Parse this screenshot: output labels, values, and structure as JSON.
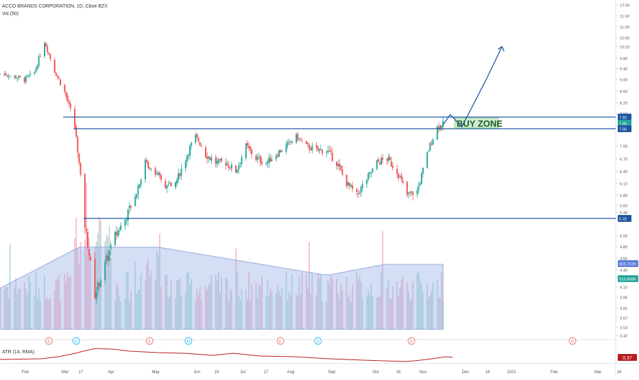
{
  "header": {
    "symbol": "ACCO BRANDS CORPORATION, 1D, Cboe BZX",
    "volume_indicator": "Vol (50)"
  },
  "atr_panel": {
    "label": "ATR (14, RMA)",
    "value_tag": "0.37"
  },
  "colors": {
    "up": "#26a69a",
    "down": "#ef5350",
    "up_vol": "#b2dfdb",
    "down_vol": "#f8bbd0",
    "vol_ma": "#9fb6e6",
    "level_line": "#1e56a0",
    "buy_zone_fill": "#c8e6c9",
    "buy_zone_text": "#1b5e20",
    "atr_line": "#b71c1c",
    "axis_text": "#555555"
  },
  "chart_data": {
    "type": "candlestick",
    "title": "ACCO BRANDS CORPORATION, 1D, Cboe BZX",
    "y_axis": {
      "ticks": [
        "12.00",
        "11.60",
        "11.00",
        "10.60",
        "10.20",
        "9.80",
        "9.40",
        "9.00",
        "8.60",
        "8.20",
        "7.80",
        "7.40",
        "7.00",
        "6.70",
        "6.40",
        "6.10",
        "5.80",
        "5.60",
        "5.40",
        "5.20",
        "5.00",
        "4.80",
        "4.60",
        "4.40",
        "4.30",
        "4.10",
        "3.95",
        "3.81",
        "3.67",
        "3.54",
        "3.42"
      ],
      "ylim": [
        3.4,
        12.05
      ]
    },
    "x_axis": {
      "ticks": [
        "Feb",
        "Mar",
        "17",
        "Apr",
        "May",
        "Jun",
        "15",
        "Jul",
        "17",
        "Aug",
        "Sep",
        "Oct",
        "16",
        "Nov",
        "Dec",
        "16",
        "2021",
        "Feb",
        "Mar",
        "16"
      ]
    },
    "price_tags": [
      "7.82",
      "7.65",
      "7.56",
      "5.32",
      "655.737K",
      "510.868K"
    ],
    "levels": [
      7.82,
      7.56,
      5.32
    ],
    "buy_zone": {
      "label": "BUY ZONE",
      "top": 7.82,
      "bottom": 7.56
    },
    "price_path": [
      [
        "2020-01-20",
        9.2
      ],
      [
        "2020-01-27",
        9.1
      ],
      [
        "2020-02-03",
        9.0
      ],
      [
        "2020-02-10",
        9.25
      ],
      [
        "2020-02-17",
        10.4
      ],
      [
        "2020-02-24",
        9.3
      ],
      [
        "2020-03-02",
        8.6
      ],
      [
        "2020-03-09",
        7.6
      ],
      [
        "2020-03-16",
        5.2
      ],
      [
        "2020-03-23",
        4.0
      ],
      [
        "2020-03-30",
        4.5
      ],
      [
        "2020-04-06",
        5.0
      ],
      [
        "2020-04-13",
        5.3
      ],
      [
        "2020-04-20",
        5.8
      ],
      [
        "2020-04-27",
        6.6
      ],
      [
        "2020-05-04",
        6.4
      ],
      [
        "2020-05-11",
        6.0
      ],
      [
        "2020-05-18",
        6.1
      ],
      [
        "2020-05-25",
        6.7
      ],
      [
        "2020-06-01",
        7.3
      ],
      [
        "2020-06-08",
        6.8
      ],
      [
        "2020-06-15",
        6.6
      ],
      [
        "2020-06-22",
        6.6
      ],
      [
        "2020-06-29",
        6.4
      ],
      [
        "2020-07-06",
        7.0
      ],
      [
        "2020-07-13",
        6.7
      ],
      [
        "2020-07-20",
        6.6
      ],
      [
        "2020-07-27",
        6.8
      ],
      [
        "2020-08-03",
        7.0
      ],
      [
        "2020-08-10",
        7.3
      ],
      [
        "2020-08-17",
        7.0
      ],
      [
        "2020-08-24",
        6.9
      ],
      [
        "2020-08-31",
        6.9
      ],
      [
        "2020-09-07",
        6.6
      ],
      [
        "2020-09-14",
        6.1
      ],
      [
        "2020-09-21",
        5.8
      ],
      [
        "2020-09-28",
        6.2
      ],
      [
        "2020-10-05",
        6.6
      ],
      [
        "2020-10-12",
        6.7
      ],
      [
        "2020-10-19",
        6.4
      ],
      [
        "2020-10-26",
        5.8
      ],
      [
        "2020-11-02",
        5.9
      ],
      [
        "2020-11-09",
        6.8
      ],
      [
        "2020-11-16",
        7.6
      ],
      [
        "2020-11-20",
        7.65
      ]
    ],
    "projection": [
      [
        "2020-11-20",
        7.65
      ],
      [
        "2020-11-25",
        7.9
      ],
      [
        "2020-12-03",
        7.6
      ],
      [
        "2020-12-20",
        9.0
      ],
      [
        "2020-12-31",
        10.2
      ]
    ],
    "earnings_markers": [
      {
        "date": "2020-02-20",
        "label": "E"
      },
      {
        "date": "2020-04-30",
        "label": "E"
      },
      {
        "date": "2020-07-30",
        "label": "E"
      },
      {
        "date": "2020-10-29",
        "label": "E"
      },
      {
        "date": "2021-02-18",
        "label": "E"
      }
    ],
    "dividend_markers": [
      {
        "date": "2020-03-10",
        "label": "D"
      },
      {
        "date": "2020-05-27",
        "label": "D"
      },
      {
        "date": "2020-08-25",
        "label": "D"
      }
    ],
    "legend": "top-left",
    "grid": false
  }
}
